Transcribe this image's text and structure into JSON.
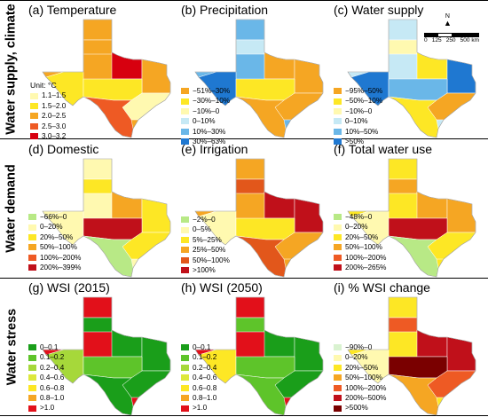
{
  "rows": [
    {
      "title": "Water supply, climate"
    },
    {
      "title": "Water demand"
    },
    {
      "title": "Water stress"
    }
  ],
  "panels": [
    {
      "title": "(a) Temperature",
      "unit": "Unit: °C",
      "legend": [
        {
          "label": "1.1–1.5",
          "color": "#fff9b0"
        },
        {
          "label": "1.5–2.0",
          "color": "#fde725"
        },
        {
          "label": "2.0–2.5",
          "color": "#f5a623"
        },
        {
          "label": "2.5–3.0",
          "color": "#ee5a24"
        },
        {
          "label": "3.0–3.2",
          "color": "#d7000f"
        }
      ],
      "region_colors": [
        "#f5a623",
        "#f5a623",
        "#f5a623",
        "#d7000f",
        "#fde725",
        "#f5a623",
        "#fde725",
        "#fff9b0",
        "#ee5a24"
      ]
    },
    {
      "title": "(b) Precipitation",
      "legend": [
        {
          "label": "−51%–30%",
          "color": "#f5a623"
        },
        {
          "label": "−30%–10%",
          "color": "#fde725"
        },
        {
          "label": "−10%–0",
          "color": "#fff9b0"
        },
        {
          "label": "0–10%",
          "color": "#c6e9f5"
        },
        {
          "label": "10%–30%",
          "color": "#6ab7e8"
        },
        {
          "label": "30%–63%",
          "color": "#1f78d1"
        }
      ],
      "region_colors": [
        "#6ab7e8",
        "#c6e9f5",
        "#fde725",
        "#f5a623",
        "#1f78d1",
        "#f5a623",
        "#fde725",
        "#f5a623",
        "#f5a623"
      ]
    },
    {
      "title": "(c) Water supply",
      "legend": [
        {
          "label": "−95%–50%",
          "color": "#f5a623"
        },
        {
          "label": "−50%–10%",
          "color": "#fde725"
        },
        {
          "label": "−10%–0",
          "color": "#fff9b0"
        },
        {
          "label": "0–10%",
          "color": "#c6e9f5"
        },
        {
          "label": "10%–50%",
          "color": "#6ab7e8"
        },
        {
          "label": ">50%",
          "color": "#1f78d1"
        }
      ],
      "north_label": "N",
      "scale_ticks": [
        "0",
        "125",
        "250",
        "500 km"
      ],
      "region_colors": [
        "#c6e9f5",
        "#fff9b0",
        "#fde725",
        "#fde725",
        "#1f78d1",
        "#1f78d1",
        "#6ab7e8",
        "#f5a623",
        "#fde725"
      ]
    },
    {
      "title": "(d) Domestic",
      "legend": [
        {
          "label": "−66%–0",
          "color": "#b8e986"
        },
        {
          "label": "0–20%",
          "color": "#fff9b0"
        },
        {
          "label": "20%–50%",
          "color": "#fde725"
        },
        {
          "label": "50%–100%",
          "color": "#f5a623"
        },
        {
          "label": "100%–200%",
          "color": "#ee5a24"
        },
        {
          "label": "200%–399%",
          "color": "#c0101a"
        }
      ],
      "region_colors": [
        "#fff9b0",
        "#fde725",
        "#fde725",
        "#f5a623",
        "#fff9b0",
        "#fde725",
        "#c0101a",
        "#fde725",
        "#b8e986"
      ]
    },
    {
      "title": "(e) Irrigation",
      "legend": [
        {
          "label": "−2%–0",
          "color": "#b8e986"
        },
        {
          "label": "0–5%",
          "color": "#fff9b0"
        },
        {
          "label": "5%–25%",
          "color": "#fde725"
        },
        {
          "label": "25%–50%",
          "color": "#f5a623"
        },
        {
          "label": "50%–100%",
          "color": "#e2571b"
        },
        {
          "label": ">100%",
          "color": "#c0101a"
        }
      ],
      "region_colors": [
        "#f5a623",
        "#e2571b",
        "#fde725",
        "#c0101a",
        "#fff9b0",
        "#c0101a",
        "#fde725",
        "#f5a623",
        "#e2571b"
      ]
    },
    {
      "title": "(f) Total water use",
      "legend": [
        {
          "label": "−48%–0",
          "color": "#b8e986"
        },
        {
          "label": "0–20%",
          "color": "#fff9b0"
        },
        {
          "label": "20%–50%",
          "color": "#fde725"
        },
        {
          "label": "50%–100%",
          "color": "#f5a623"
        },
        {
          "label": "100%–200%",
          "color": "#ee5a24"
        },
        {
          "label": "200%–265%",
          "color": "#c0101a"
        }
      ],
      "region_colors": [
        "#fde725",
        "#f5a623",
        "#fde725",
        "#f5a623",
        "#fff9b0",
        "#f5a623",
        "#c0101a",
        "#fde725",
        "#b8e986"
      ]
    },
    {
      "title": "(g) WSI (2015)",
      "legend": [
        {
          "label": "0–0.1",
          "color": "#1a9e1a"
        },
        {
          "label": "0.1–0.2",
          "color": "#5ec42a"
        },
        {
          "label": "0.2–0.4",
          "color": "#a6d83a"
        },
        {
          "label": "0.4–0.6",
          "color": "#dde83c"
        },
        {
          "label": "0.6–0.8",
          "color": "#fde725"
        },
        {
          "label": "0.8–1.0",
          "color": "#f5a623"
        },
        {
          "label": ">1.0",
          "color": "#e2101a"
        }
      ],
      "region_colors": [
        "#e2101a",
        "#1a9e1a",
        "#5ec42a",
        "#1a9e1a",
        "#a6d83a",
        "#1a9e1a",
        "#5ec42a",
        "#1a9e1a",
        "#1a9e1a"
      ]
    },
    {
      "title": "(h) WSI (2050)",
      "legend": [
        {
          "label": "0–0.1",
          "color": "#1a9e1a"
        },
        {
          "label": "0.1–0.2",
          "color": "#5ec42a"
        },
        {
          "label": "0.2–0.4",
          "color": "#a6d83a"
        },
        {
          "label": "0.4–0.6",
          "color": "#dde83c"
        },
        {
          "label": "0.6–0.8",
          "color": "#fde725"
        },
        {
          "label": "0.8–1.0",
          "color": "#f5a623"
        },
        {
          "label": ">1.0",
          "color": "#e2101a"
        }
      ],
      "region_colors": [
        "#e2101a",
        "#5ec42a",
        "#a6d83a",
        "#1a9e1a",
        "#fde725",
        "#1a9e1a",
        "#5ec42a",
        "#1a9e1a",
        "#5ec42a"
      ]
    },
    {
      "title": "(i) % WSI change",
      "legend": [
        {
          "label": "−90%–0",
          "color": "#d9f2d0"
        },
        {
          "label": "0–20%",
          "color": "#fff9b0"
        },
        {
          "label": "20%–50%",
          "color": "#fde725"
        },
        {
          "label": "50%–100%",
          "color": "#f5a623"
        },
        {
          "label": "100%–200%",
          "color": "#ee5a24"
        },
        {
          "label": "200%–500%",
          "color": "#c0101a"
        },
        {
          "label": ">500%",
          "color": "#7a0000"
        }
      ],
      "region_colors": [
        "#fde725",
        "#ee5a24",
        "#f5a623",
        "#c0101a",
        "#fff9b0",
        "#c0101a",
        "#7a0000",
        "#ee5a24",
        "#f5a623"
      ]
    }
  ]
}
